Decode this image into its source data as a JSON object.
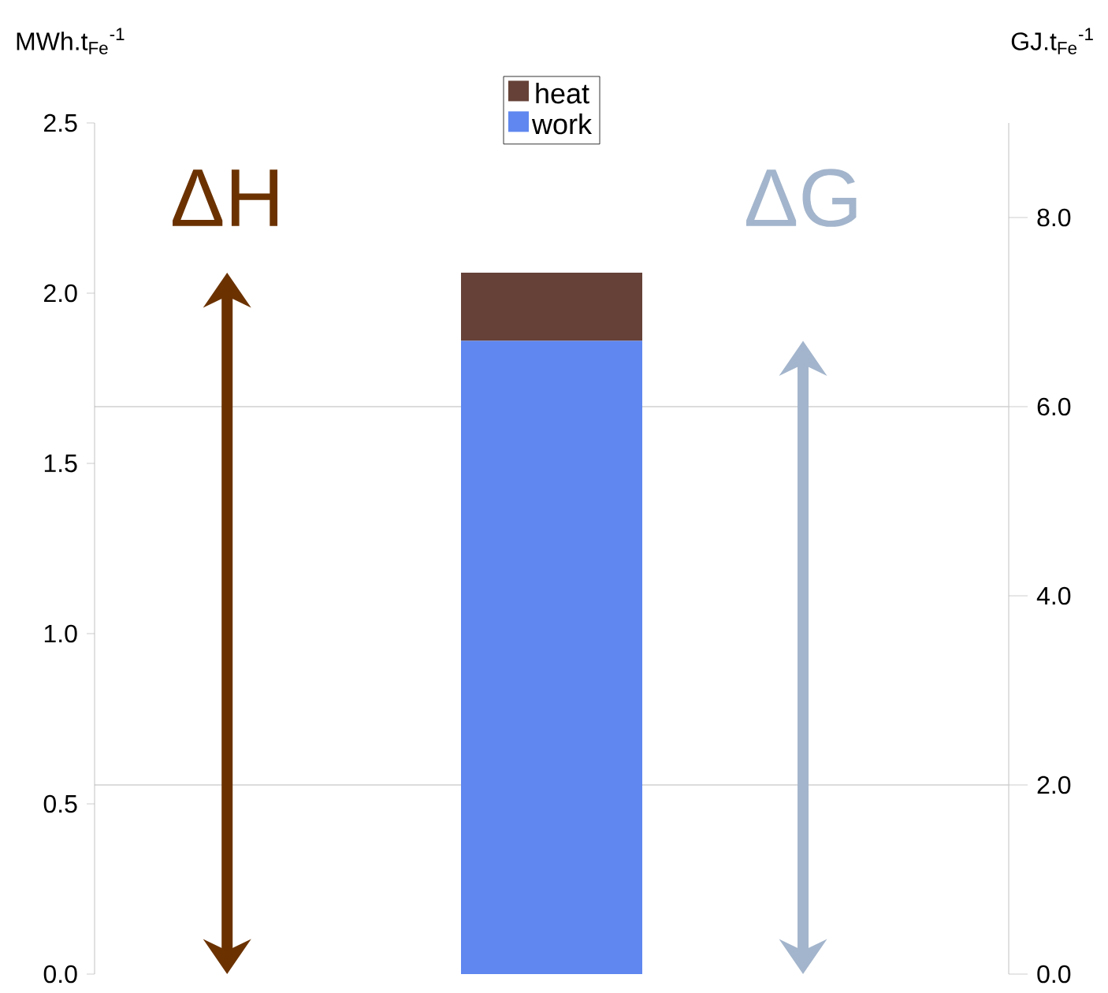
{
  "chart_data": {
    "type": "bar",
    "stacked": true,
    "categories": [
      null
    ],
    "series": [
      {
        "name": "work",
        "color": "#5f87ef",
        "values": [
          1.86
        ]
      },
      {
        "name": "heat",
        "color": "#654137",
        "values": [
          0.2
        ]
      }
    ],
    "ylabel": "MWh.t$_{Fe}$$^{-1}$",
    "y2label": "GJ.t$_{Fe}$$^{-1}$",
    "ylim": [
      0,
      2.5
    ],
    "yticks": [
      {
        "value": 0,
        "label": "0.0"
      },
      {
        "value": 0.5,
        "label": "0.5"
      },
      {
        "value": 1,
        "label": "1.0"
      },
      {
        "value": 1.5,
        "label": "1.5"
      },
      {
        "value": 2,
        "label": "2.0"
      },
      {
        "value": 2.5,
        "label": "2.5"
      }
    ],
    "y2lim": [
      0,
      9
    ],
    "y2ticks": [
      {
        "value": 0,
        "label": "0.0"
      },
      {
        "value": 2,
        "label": "2.0"
      },
      {
        "value": 4,
        "label": "4.0"
      },
      {
        "value": 6,
        "label": "6.0"
      },
      {
        "value": 8,
        "label": "8.0"
      }
    ],
    "ref_lines": [
      {
        "axis": "y2",
        "value": 2,
        "color": "#d0d0d0"
      },
      {
        "axis": "y2",
        "value": 6,
        "color": "#d0d0d0"
      }
    ],
    "legend": "top",
    "annotations": [
      "ΔH",
      "ΔG"
    ]
  }
}
